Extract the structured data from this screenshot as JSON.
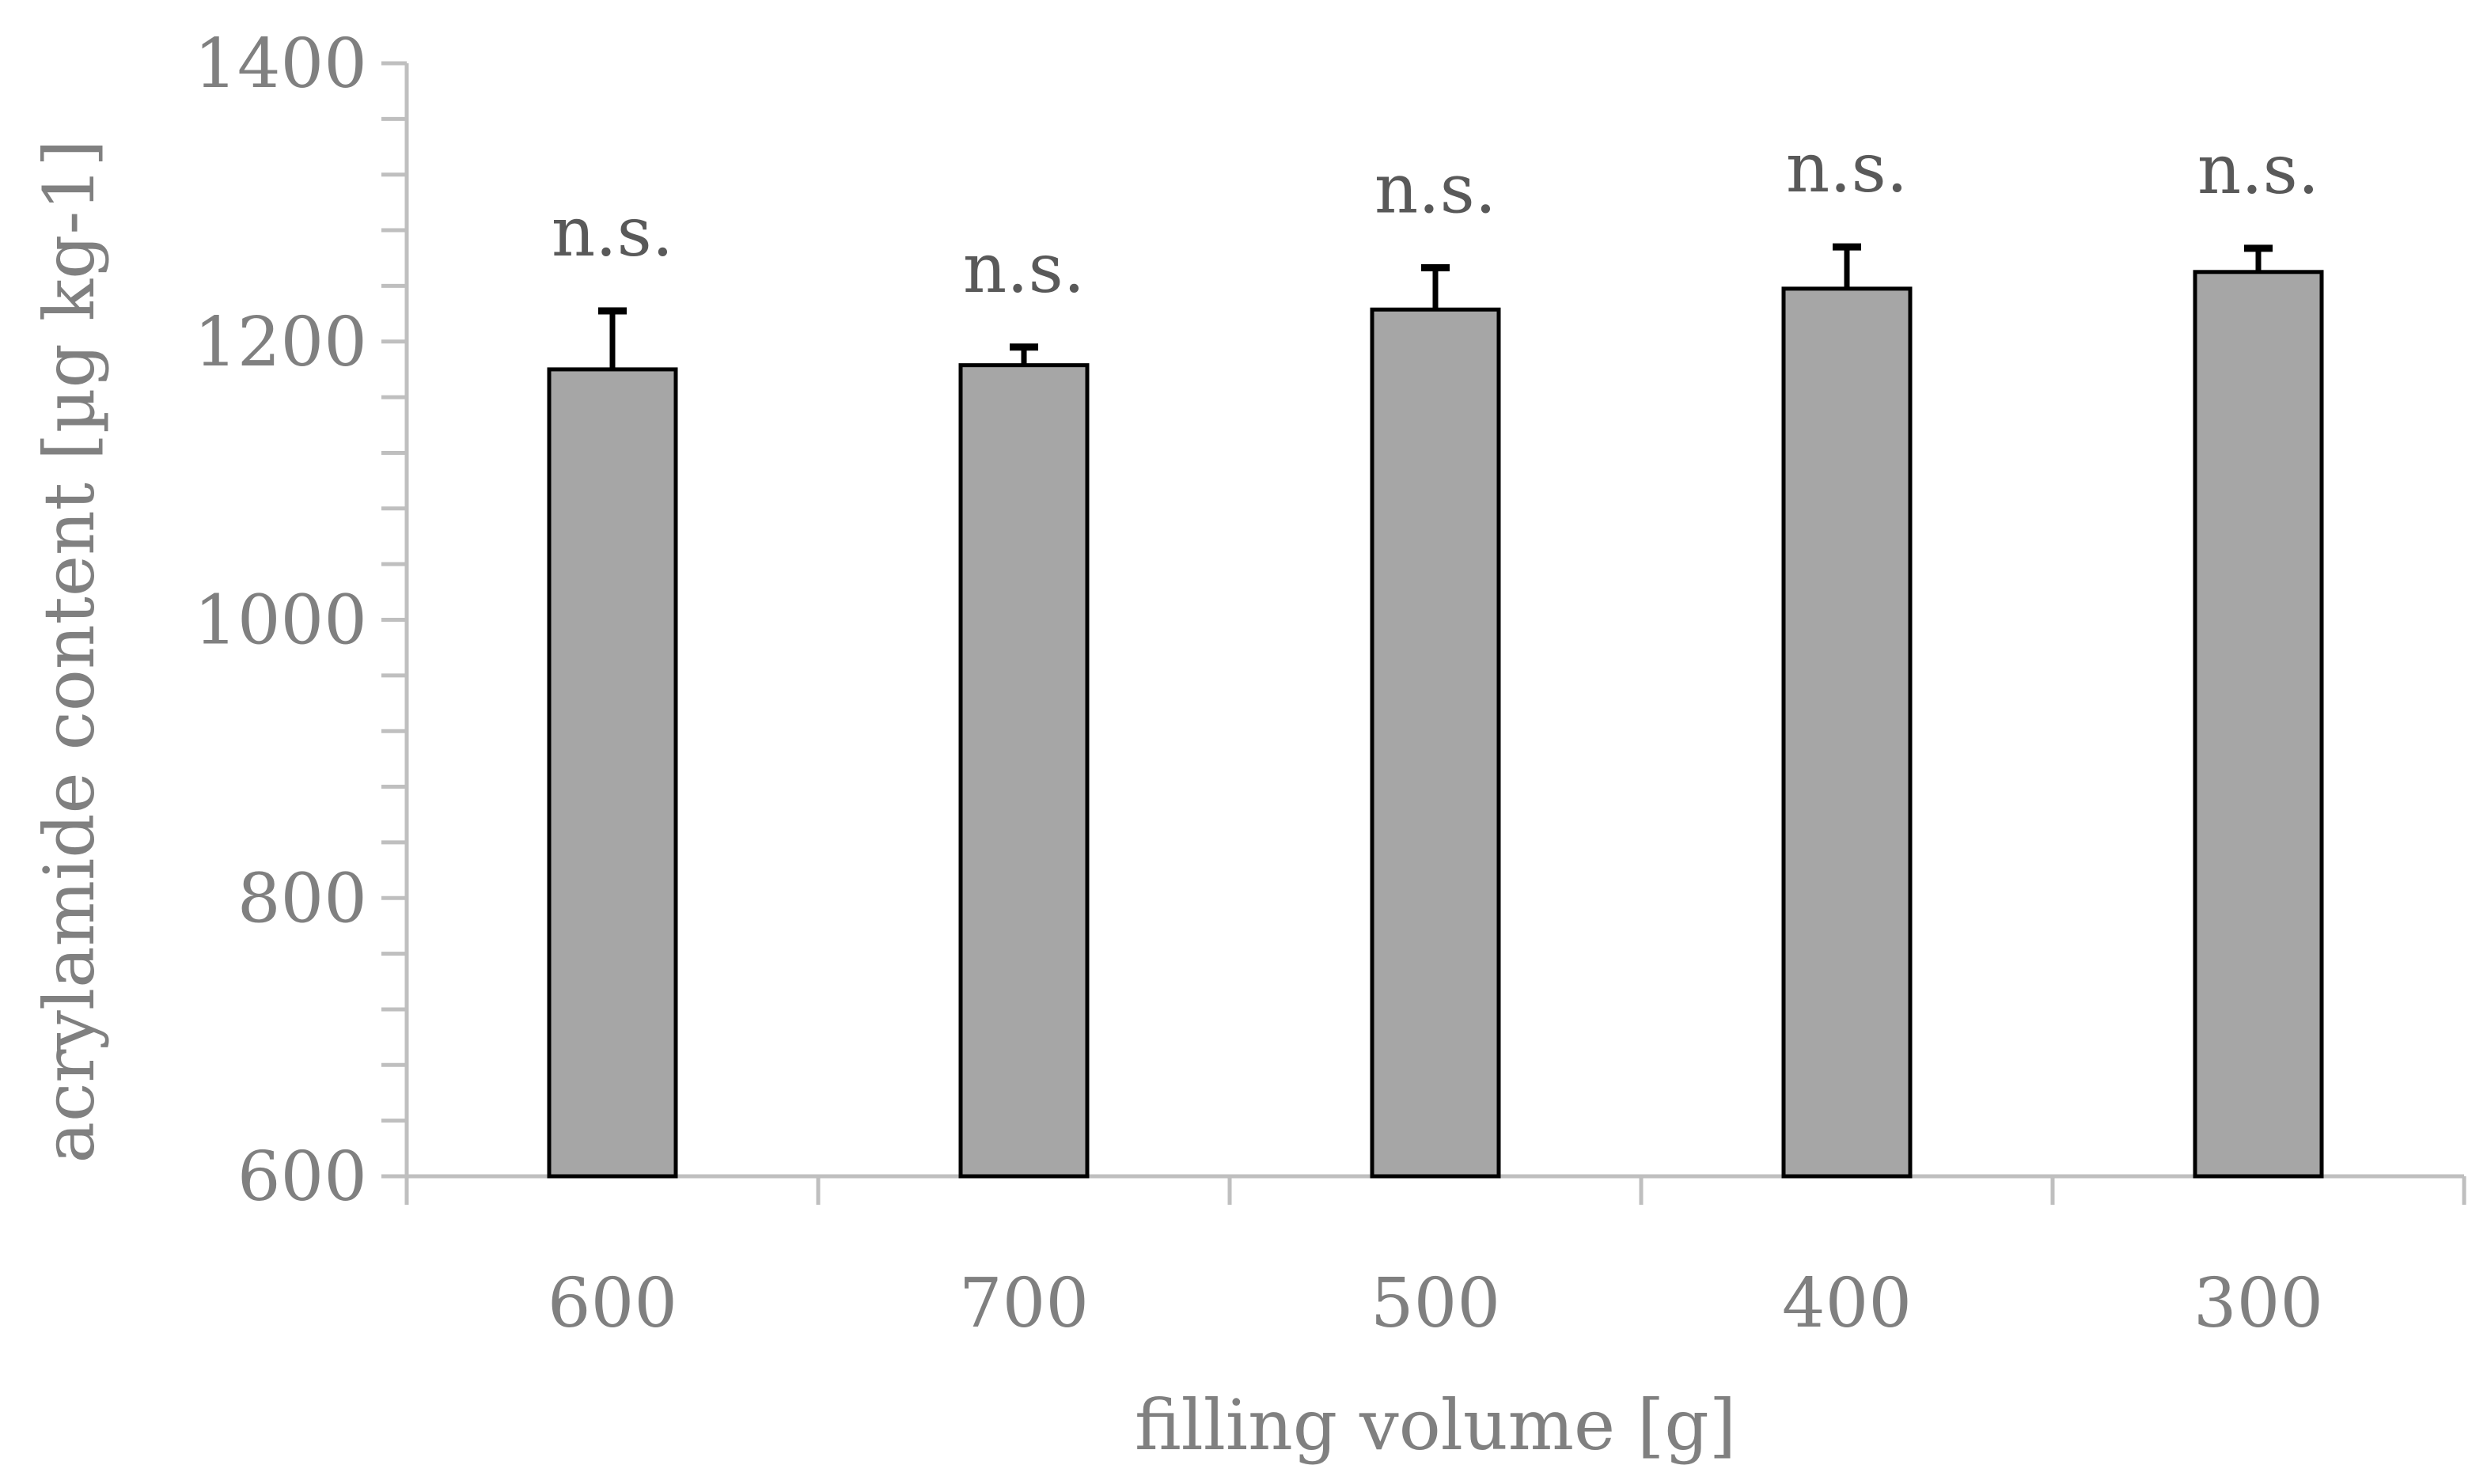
{
  "chart_data": {
    "type": "bar",
    "xlabel": "filling volume [g]",
    "ylabel": "acrylamide content [µg kg-1]",
    "ylim": [
      600,
      1400
    ],
    "y_major_ticks": [
      600,
      800,
      1000,
      1200,
      1400
    ],
    "y_major_tick_labels": [
      "600",
      "800",
      "1000",
      "1200",
      "1400"
    ],
    "y_minor_step": 40,
    "categories": [
      "600",
      "700",
      "500",
      "400",
      "300"
    ],
    "values": [
      1180,
      1183,
      1223,
      1238,
      1250
    ],
    "error_plus": [
      42,
      13,
      30,
      30,
      17
    ],
    "significance_labels": [
      "n.s.",
      "n.s.",
      "n.s.",
      "n.s.",
      "n.s."
    ],
    "grid": false,
    "legend": "none",
    "colors": {
      "bar_fill": "#a6a6a6",
      "bar_stroke": "#000000",
      "axis": "#bfbfbf",
      "error_bar": "#000000",
      "tick_text": "#808080",
      "annotation_text": "#595959"
    }
  }
}
